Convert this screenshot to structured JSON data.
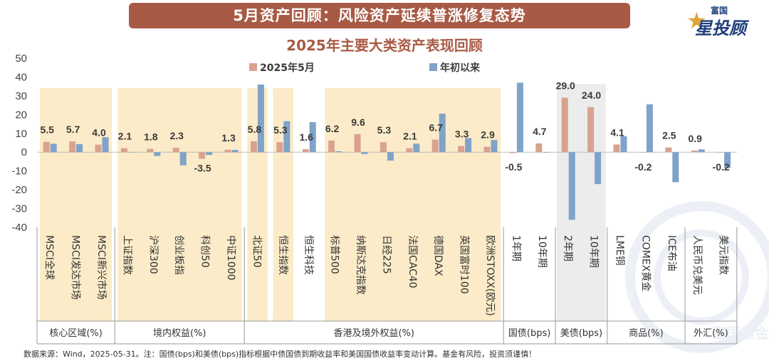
{
  "banner": {
    "title": "5月资产回顾：风险资产延续普涨修复态势"
  },
  "logo": {
    "small": "富国",
    "big": "星投顾"
  },
  "watermark": "富国基金",
  "footnote": "数据来源：Wind，2025-05-31。注：国债(bps)和美债(bps)指标根据中债国债到期收益率和美国国债收益率变动计算。基金有风险，投资须谨慎！",
  "colors": {
    "brand": "#a85a44",
    "may": "#d9a28f",
    "ytd": "#7fa3c9",
    "highlight": "#fbebc8",
    "highlight_gray": "#ececec"
  },
  "chart_data": {
    "type": "bar",
    "title": "2025年主要大类资产表现回顾",
    "ylim": [
      -40,
      50
    ],
    "yticks": [
      -40,
      -30,
      -20,
      -10,
      0,
      10,
      20,
      30,
      40,
      50
    ],
    "legend_position": "top",
    "categories": [
      "MSCI全球",
      "MSCI发达市场",
      "MSCI新兴市场",
      "上证指数",
      "沪深300",
      "创业板指",
      "科创50",
      "中证1000",
      "北证50",
      "恒生指数",
      "恒生科技",
      "标普500",
      "纳斯达克指数",
      "日经225",
      "法国CAC40",
      "德国DAX",
      "英国富时100",
      "欧洲STOXX(欧元)",
      "1年期",
      "10年期",
      "2年期",
      "10年期",
      "LME铜",
      "COMEX黄金",
      "ICE布油",
      "人民币兑美元",
      "美元指数"
    ],
    "series": [
      {
        "name": "2025年5月",
        "values": [
          5.5,
          5.7,
          4.0,
          2.1,
          1.8,
          2.3,
          -3.5,
          1.3,
          5.8,
          5.3,
          1.6,
          6.2,
          9.6,
          5.3,
          2.1,
          6.7,
          3.3,
          2.9,
          -0.5,
          4.7,
          29.0,
          24.0,
          4.1,
          -0.2,
          2.5,
          0.9,
          -0.2
        ]
      },
      {
        "name": "年初以来",
        "values": [
          4.5,
          4.3,
          8.0,
          -0.2,
          -2.0,
          -7.0,
          -1.5,
          1.2,
          36.0,
          16.5,
          16.0,
          0.5,
          -1.0,
          -4.5,
          4.5,
          20.5,
          7.5,
          6.5,
          37.0,
          -0.2,
          -36.0,
          -17.0,
          8.5,
          25.5,
          -16.0,
          1.5,
          -8.5
        ]
      }
    ],
    "groups": [
      {
        "label": "核心区域(%)",
        "start": 0,
        "end": 2,
        "highlight": "yellow"
      },
      {
        "label": "境内权益(%)",
        "start": 3,
        "end": 7,
        "highlight": "none"
      },
      {
        "label": "香港及境外权益(%)",
        "start": 8,
        "end": 17,
        "highlight": "none"
      },
      {
        "label": "国债(bps)",
        "start": 18,
        "end": 19,
        "highlight": "none"
      },
      {
        "label": "美债(bps)",
        "start": 20,
        "end": 21,
        "highlight": "gray"
      },
      {
        "label": "商品(%)",
        "start": 22,
        "end": 24,
        "highlight": "none"
      },
      {
        "label": "外汇(%)",
        "start": 25,
        "end": 26,
        "highlight": "none"
      }
    ],
    "highlight_ranges": [
      [
        0,
        2
      ],
      [
        3,
        7
      ],
      [
        8,
        8
      ],
      [
        9,
        9
      ],
      [
        11,
        17
      ]
    ]
  }
}
